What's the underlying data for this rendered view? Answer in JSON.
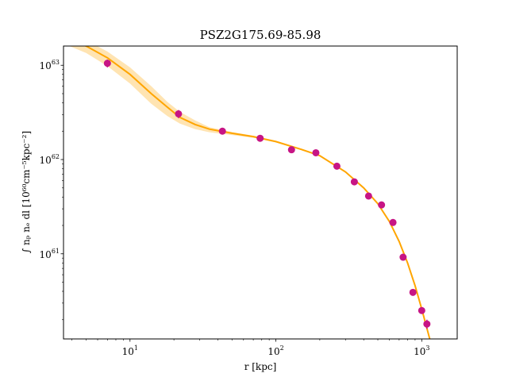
{
  "chart_data": {
    "type": "scatter",
    "title": "PSZ2G175.69-85.98",
    "xlabel": "r [kpc]",
    "ylabel": "∫ nₚ nₑ dl [10⁶⁰cm⁻⁵kpc⁻²]",
    "xscale": "log",
    "yscale": "log",
    "xlim": [
      3.5,
      1750
    ],
    "ylim": [
      1.25e+60,
      1.6e+63
    ],
    "x_ticks": [
      {
        "value": 10,
        "base": "10",
        "exp": "1"
      },
      {
        "value": 100,
        "base": "10",
        "exp": "2"
      },
      {
        "value": 1000,
        "base": "10",
        "exp": "3"
      }
    ],
    "y_ticks": [
      {
        "value": 1e+61,
        "base": "10",
        "exp": "61"
      },
      {
        "value": 1e+62,
        "base": "10",
        "exp": "62"
      },
      {
        "value": 1e+63,
        "base": "10",
        "exp": "63"
      }
    ],
    "series": [
      {
        "kind": "points",
        "color": "#c71585",
        "x": [
          7.0,
          21.5,
          43,
          78,
          128,
          188,
          262,
          345,
          432,
          530,
          635,
          745,
          870,
          1000,
          1085
        ],
        "y": [
          1.05e+63,
          3.05e+62,
          2e+62,
          1.68e+62,
          1.27e+62,
          1.18e+62,
          8.5e+61,
          5.8e+61,
          4.1e+61,
          3.3e+61,
          2.15e+61,
          9.2e+60,
          3.9e+60,
          2.5e+60,
          1.8e+60
        ],
        "yerr": [
          1e+62,
          3e+61,
          1.5e+61,
          1e+61,
          8e+60,
          7e+60,
          4e+60,
          3e+60,
          2e+60,
          1.5e+60,
          1e+60,
          4e+59,
          2.5e+59,
          2e+59,
          2e+59
        ]
      },
      {
        "kind": "model-line",
        "color": "#ffa500",
        "x": [
          3.5,
          5,
          7,
          10,
          14,
          18,
          22,
          28,
          35,
          50,
          70,
          100,
          150,
          200,
          300,
          400,
          500,
          600,
          700,
          800,
          900,
          1000,
          1100,
          1180
        ],
        "y": [
          1.95e+63,
          1.6e+63,
          1.2e+63,
          8e+62,
          5e+62,
          3.6e+62,
          2.8e+62,
          2.35e+62,
          2.1e+62,
          1.9e+62,
          1.75e+62,
          1.55e+62,
          1.28e+62,
          1.1e+62,
          7.4e+61,
          5e+61,
          3.4e+61,
          2.2e+61,
          1.35e+61,
          8e+60,
          4.6e+60,
          2.6e+60,
          1.5e+60,
          1e+60
        ],
        "band_upper": [
          2.1e+63,
          1.85e+63,
          1.4e+63,
          9.5e+62,
          6e+62,
          4.1e+62,
          3.2e+62,
          2.6e+62,
          2.2e+62,
          1.96e+62,
          1.79e+62,
          1.58e+62,
          1.3e+62,
          1.12e+62,
          7.5e+61,
          5.1e+61,
          3.45e+61,
          2.24e+61,
          1.38e+61,
          8.2e+60,
          4.7e+60,
          2.7e+60,
          1.55e+60,
          1.05e+60
        ],
        "band_lower": [
          1.7e+63,
          1.35e+63,
          9.8e+62,
          6.4e+62,
          3.9e+62,
          2.9e+62,
          2.4e+62,
          2.1e+62,
          1.95e+62,
          1.82e+62,
          1.7e+62,
          1.52e+62,
          1.26e+62,
          1.08e+62,
          7.3e+61,
          4.9e+61,
          3.35e+61,
          2.16e+61,
          1.32e+61,
          7.8e+60,
          4.5e+60,
          2.5e+60,
          1.45e+60,
          9.5e+59
        ]
      }
    ]
  }
}
